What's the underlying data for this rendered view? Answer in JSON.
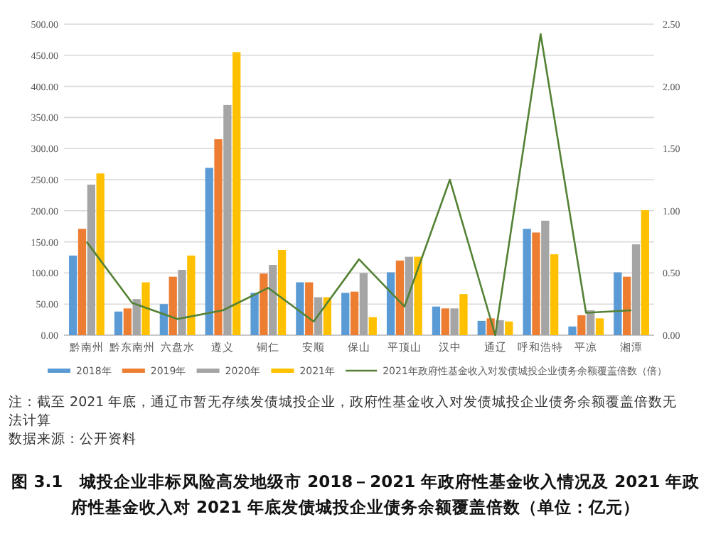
{
  "chart_data": {
    "type": "bar",
    "title": "图 3.1　城投企业非标风险高发地级市 2018－2021 年政府性基金收入情况及 2021 年政府性基金收入对 2021 年底发债城投企业债务余额覆盖倍数（单位：亿元）",
    "annotations": [
      "注：截至 2021 年底，通辽市暂无存续发债城投企业，政府性基金收入对发债城投企业债务余额覆盖倍数无法计算",
      "数据来源：公开资料"
    ],
    "categories": [
      "黔南州",
      "黔东南州",
      "六盘水",
      "遵义",
      "铜仁",
      "安顺",
      "保山",
      "平顶山",
      "汉中",
      "通辽",
      "呼和浩特",
      "平凉",
      "湘潭"
    ],
    "series": [
      {
        "name": "2018年",
        "color": "#5b9bd5",
        "values": [
          128,
          38,
          50,
          269,
          68,
          85,
          68,
          101,
          46,
          23,
          171,
          14,
          101
        ]
      },
      {
        "name": "2019年",
        "color": "#ed7d31",
        "values": [
          171,
          43,
          94,
          315,
          99,
          85,
          70,
          120,
          43,
          27,
          165,
          32,
          94
        ]
      },
      {
        "name": "2020年",
        "color": "#a5a5a5",
        "values": [
          242,
          58,
          105,
          370,
          113,
          61,
          100,
          126,
          43,
          24,
          184,
          40,
          146
        ]
      },
      {
        "name": "2021年",
        "color": "#ffc000",
        "values": [
          260,
          85,
          128,
          455,
          137,
          61,
          29,
          126,
          66,
          22,
          130,
          27,
          201
        ]
      },
      {
        "name": "2021年政府性基金收入对发债城投企业债务余额覆盖倍数（倍）",
        "type": "line",
        "axis": "y2",
        "color": "#548235",
        "values": [
          0.75,
          0.26,
          0.13,
          0.2,
          0.38,
          0.11,
          0.61,
          0.23,
          1.25,
          0,
          2.42,
          0.18,
          0.2
        ]
      }
    ],
    "ylim": [
      0,
      500
    ],
    "yticks": [
      {
        "value": 0,
        "label": "0.00"
      },
      {
        "value": 50,
        "label": "50.00"
      },
      {
        "value": 100,
        "label": "100.00"
      },
      {
        "value": 150,
        "label": "150.00"
      },
      {
        "value": 200,
        "label": "200.00"
      },
      {
        "value": 250,
        "label": "250.00"
      },
      {
        "value": 300,
        "label": "300.00"
      },
      {
        "value": 350,
        "label": "350.00"
      },
      {
        "value": 400,
        "label": "400.00"
      },
      {
        "value": 450,
        "label": "450.00"
      },
      {
        "value": 500,
        "label": "500.00"
      }
    ],
    "y2lim": [
      0,
      2.5
    ],
    "y2ticks": [
      {
        "value": 0,
        "label": "0.00"
      },
      {
        "value": 0.5,
        "label": "0.50"
      },
      {
        "value": 1,
        "label": "1.00"
      },
      {
        "value": 1.5,
        "label": "1.50"
      },
      {
        "value": 2,
        "label": "2.00"
      },
      {
        "value": 2.5,
        "label": "2.50"
      }
    ],
    "grid": "y",
    "legend": "bottom",
    "marker": "none",
    "line_style": "solid"
  }
}
